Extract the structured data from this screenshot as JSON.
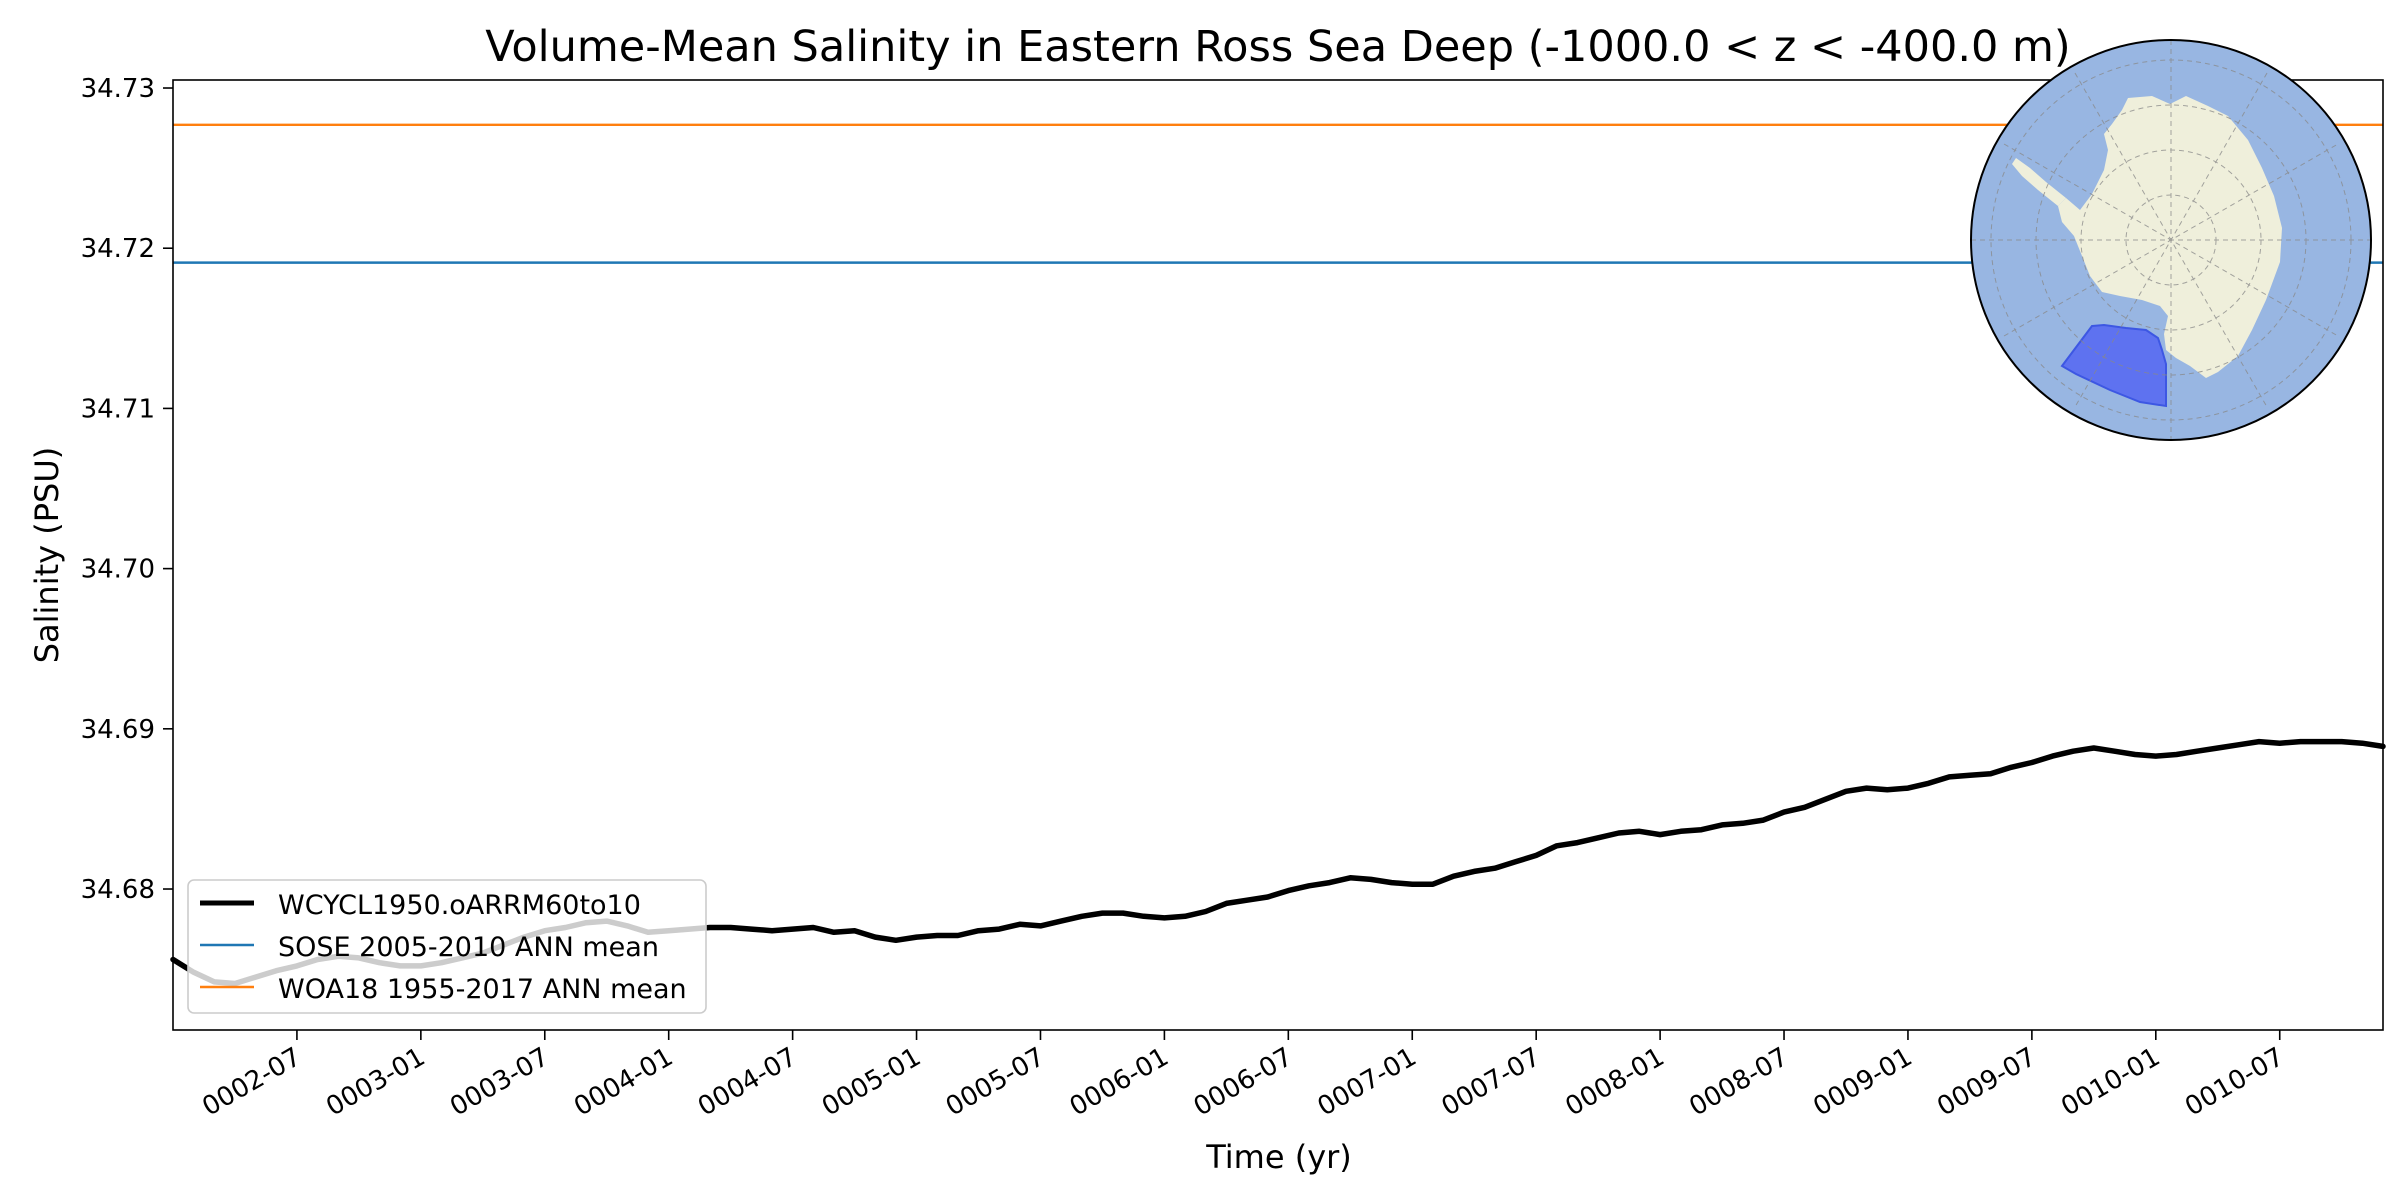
{
  "chart_data": {
    "type": "line",
    "title": "Volume-Mean Salinity in Eastern Ross Sea Deep (-1000.0 < z < -400.0 m)",
    "xlabel": "Time (yr)",
    "ylabel": "Salinity (PSU)",
    "xlim": [
      "0002-01",
      "0010-12"
    ],
    "ylim": [
      34.6712,
      34.7305
    ],
    "x_ticks": [
      "0002-07",
      "0003-01",
      "0003-07",
      "0004-01",
      "0004-07",
      "0005-01",
      "0005-07",
      "0006-01",
      "0006-07",
      "0007-01",
      "0007-07",
      "0008-01",
      "0008-07",
      "0009-01",
      "0009-07",
      "0010-01",
      "0010-07"
    ],
    "y_ticks": [
      "34.68",
      "34.69",
      "34.70",
      "34.71",
      "34.72",
      "34.73"
    ],
    "grid": false,
    "legend_position": "lower left",
    "inset_map": "south-polar-stereographic-region-map",
    "colors": {
      "model": "#000000",
      "sose": "#1f77b4",
      "woa18": "#ff7f0e",
      "map_ocean": "#98b6e2",
      "map_land": "#efefdb",
      "map_region": "#5b6ff0"
    },
    "series": [
      {
        "name": "WCYCL1950.oARRM60to10",
        "x": [
          "0002-01",
          "0002-02",
          "0002-03",
          "0002-04",
          "0002-05",
          "0002-06",
          "0002-07",
          "0002-08",
          "0002-09",
          "0002-10",
          "0002-11",
          "0002-12",
          "0003-01",
          "0003-02",
          "0003-03",
          "0003-04",
          "0003-05",
          "0003-06",
          "0003-07",
          "0003-08",
          "0003-09",
          "0003-10",
          "0003-11",
          "0003-12",
          "0004-01",
          "0004-02",
          "0004-03",
          "0004-04",
          "0004-05",
          "0004-06",
          "0004-07",
          "0004-08",
          "0004-09",
          "0004-10",
          "0004-11",
          "0004-12",
          "0005-01",
          "0005-02",
          "0005-03",
          "0005-04",
          "0005-05",
          "0005-06",
          "0005-07",
          "0005-08",
          "0005-09",
          "0005-10",
          "0005-11",
          "0005-12",
          "0006-01",
          "0006-02",
          "0006-03",
          "0006-04",
          "0006-05",
          "0006-06",
          "0006-07",
          "0006-08",
          "0006-09",
          "0006-10",
          "0006-11",
          "0006-12",
          "0007-01",
          "0007-02",
          "0007-03",
          "0007-04",
          "0007-05",
          "0007-06",
          "0007-07",
          "0007-08",
          "0007-09",
          "0007-10",
          "0007-11",
          "0007-12",
          "0008-01",
          "0008-02",
          "0008-03",
          "0008-04",
          "0008-05",
          "0008-06",
          "0008-07",
          "0008-08",
          "0008-09",
          "0008-10",
          "0008-11",
          "0008-12",
          "0009-01",
          "0009-02",
          "0009-03",
          "0009-04",
          "0009-05",
          "0009-06",
          "0009-07",
          "0009-08",
          "0009-09",
          "0009-10",
          "0009-11",
          "0009-12",
          "0010-01",
          "0010-02",
          "0010-03",
          "0010-04",
          "0010-05",
          "0010-06",
          "0010-07",
          "0010-08",
          "0010-09",
          "0010-10",
          "0010-11",
          "0010-12"
        ],
        "values": [
          34.6756,
          34.6748,
          34.6742,
          34.6741,
          34.6745,
          34.6749,
          34.6752,
          34.6756,
          34.6758,
          34.6757,
          34.6754,
          34.6752,
          34.6752,
          34.6754,
          34.6757,
          34.676,
          34.6765,
          34.677,
          34.6774,
          34.6776,
          34.6779,
          34.678,
          34.6777,
          34.6773,
          34.6774,
          34.6775,
          34.6776,
          34.6776,
          34.6775,
          34.6774,
          34.6775,
          34.6776,
          34.6773,
          34.6774,
          34.677,
          34.6768,
          34.677,
          34.6771,
          34.6771,
          34.6774,
          34.6775,
          34.6778,
          34.6777,
          34.678,
          34.6783,
          34.6785,
          34.6785,
          34.6783,
          34.6782,
          34.6783,
          34.6786,
          34.6791,
          34.6793,
          34.6795,
          34.6799,
          34.6802,
          34.6804,
          34.6807,
          34.6806,
          34.6804,
          34.6803,
          34.6803,
          34.6808,
          34.6811,
          34.6813,
          34.6817,
          34.6821,
          34.6827,
          34.6829,
          34.6832,
          34.6835,
          34.6836,
          34.6834,
          34.6836,
          34.6837,
          34.684,
          34.6841,
          34.6843,
          34.6848,
          34.6851,
          34.6856,
          34.6861,
          34.6863,
          34.6862,
          34.6863,
          34.6866,
          34.687,
          34.6871,
          34.6872,
          34.6876,
          34.6879,
          34.6883,
          34.6886,
          34.6888,
          34.6886,
          34.6884,
          34.6883,
          34.6884,
          34.6886,
          34.6888,
          34.689,
          34.6892,
          34.6891,
          34.6892,
          34.6892,
          34.6892,
          34.6891,
          34.6889
        ]
      },
      {
        "name": "SOSE 2005-2010 ANN mean",
        "value": 34.7191
      },
      {
        "name": "WOA18 1955-2017 ANN mean",
        "value": 34.7277
      }
    ]
  }
}
